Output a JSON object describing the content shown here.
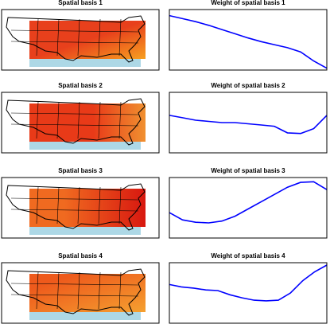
{
  "chart_data": [
    {
      "type": "map",
      "title": "Spatial basis  1"
    },
    {
      "type": "line",
      "title": "Weight of spatial basis  1",
      "color": "#0000ff",
      "ylim": [
        0,
        1
      ],
      "values": [
        0.9,
        0.85,
        0.8,
        0.74,
        0.67,
        0.6,
        0.53,
        0.47,
        0.42,
        0.37,
        0.3,
        0.15,
        0.03
      ]
    },
    {
      "type": "map",
      "title": "Spatial basis  2"
    },
    {
      "type": "line",
      "title": "Weight of spatial basis  2",
      "color": "#0000ff",
      "ylim": [
        0,
        1
      ],
      "values": [
        0.62,
        0.58,
        0.54,
        0.52,
        0.5,
        0.5,
        0.48,
        0.46,
        0.44,
        0.33,
        0.32,
        0.4,
        0.62
      ]
    },
    {
      "type": "map",
      "title": "Spatial basis  3"
    },
    {
      "type": "line",
      "title": "Weight of spatial basis  3",
      "color": "#0000ff",
      "ylim": [
        0,
        1
      ],
      "values": [
        0.42,
        0.3,
        0.26,
        0.25,
        0.28,
        0.36,
        0.48,
        0.6,
        0.72,
        0.84,
        0.92,
        0.93,
        0.8
      ]
    },
    {
      "type": "map",
      "title": "Spatial basis  4"
    },
    {
      "type": "line",
      "title": "Weight of spatial basis  4",
      "color": "#0000ff",
      "ylim": [
        0,
        1
      ],
      "values": [
        0.64,
        0.6,
        0.58,
        0.55,
        0.54,
        0.47,
        0.42,
        0.38,
        0.37,
        0.38,
        0.5,
        0.7,
        0.85,
        0.96
      ]
    }
  ]
}
